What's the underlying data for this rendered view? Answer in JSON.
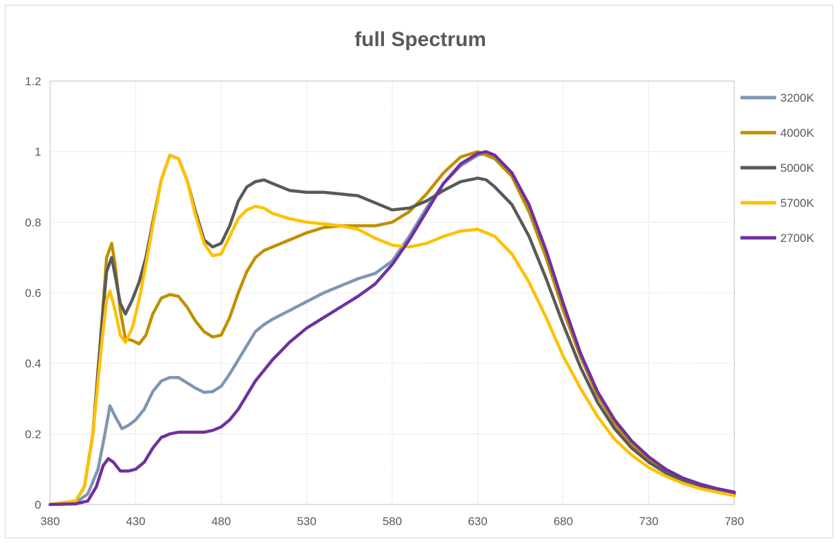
{
  "chart_data": {
    "type": "line",
    "title": "full Spectrum",
    "xlabel": "",
    "ylabel": "",
    "xlim": [
      380,
      780
    ],
    "ylim": [
      0,
      1.2
    ],
    "x_ticks": [
      "380",
      "430",
      "480",
      "530",
      "580",
      "630",
      "680",
      "730",
      "780"
    ],
    "y_ticks": [
      "0",
      "0.2",
      "0.4",
      "0.6",
      "0.8",
      "1",
      "1.2"
    ],
    "grid": true,
    "legend_position": "right",
    "series": [
      {
        "name": "3200K",
        "color": "#7f96b2",
        "points": [
          [
            380,
            0
          ],
          [
            395,
            0.005
          ],
          [
            402,
            0.03
          ],
          [
            408,
            0.1
          ],
          [
            412,
            0.2
          ],
          [
            415,
            0.28
          ],
          [
            418,
            0.25
          ],
          [
            422,
            0.215
          ],
          [
            426,
            0.225
          ],
          [
            430,
            0.24
          ],
          [
            435,
            0.27
          ],
          [
            440,
            0.32
          ],
          [
            445,
            0.35
          ],
          [
            450,
            0.36
          ],
          [
            455,
            0.36
          ],
          [
            460,
            0.345
          ],
          [
            465,
            0.33
          ],
          [
            470,
            0.318
          ],
          [
            475,
            0.32
          ],
          [
            480,
            0.335
          ],
          [
            485,
            0.37
          ],
          [
            490,
            0.41
          ],
          [
            495,
            0.45
          ],
          [
            500,
            0.49
          ],
          [
            505,
            0.51
          ],
          [
            510,
            0.525
          ],
          [
            520,
            0.55
          ],
          [
            530,
            0.575
          ],
          [
            540,
            0.6
          ],
          [
            550,
            0.62
          ],
          [
            560,
            0.64
          ],
          [
            570,
            0.655
          ],
          [
            580,
            0.69
          ],
          [
            590,
            0.76
          ],
          [
            600,
            0.84
          ],
          [
            610,
            0.91
          ],
          [
            620,
            0.96
          ],
          [
            630,
            0.99
          ],
          [
            635,
            0.995
          ],
          [
            640,
            0.98
          ],
          [
            650,
            0.93
          ],
          [
            660,
            0.83
          ],
          [
            670,
            0.7
          ],
          [
            680,
            0.55
          ],
          [
            690,
            0.42
          ],
          [
            700,
            0.31
          ],
          [
            710,
            0.23
          ],
          [
            720,
            0.17
          ],
          [
            730,
            0.13
          ],
          [
            740,
            0.095
          ],
          [
            750,
            0.072
          ],
          [
            760,
            0.055
          ],
          [
            770,
            0.045
          ],
          [
            780,
            0.035
          ]
        ]
      },
      {
        "name": "4000K",
        "color": "#bf9000",
        "points": [
          [
            380,
            0
          ],
          [
            395,
            0.01
          ],
          [
            400,
            0.05
          ],
          [
            405,
            0.2
          ],
          [
            410,
            0.5
          ],
          [
            413,
            0.7
          ],
          [
            416,
            0.74
          ],
          [
            418,
            0.68
          ],
          [
            421,
            0.55
          ],
          [
            424,
            0.47
          ],
          [
            428,
            0.465
          ],
          [
            432,
            0.455
          ],
          [
            436,
            0.48
          ],
          [
            440,
            0.54
          ],
          [
            445,
            0.585
          ],
          [
            450,
            0.595
          ],
          [
            455,
            0.59
          ],
          [
            460,
            0.56
          ],
          [
            465,
            0.52
          ],
          [
            470,
            0.49
          ],
          [
            475,
            0.475
          ],
          [
            480,
            0.48
          ],
          [
            485,
            0.53
          ],
          [
            490,
            0.6
          ],
          [
            495,
            0.66
          ],
          [
            500,
            0.7
          ],
          [
            505,
            0.72
          ],
          [
            510,
            0.73
          ],
          [
            520,
            0.75
          ],
          [
            530,
            0.77
          ],
          [
            540,
            0.785
          ],
          [
            550,
            0.79
          ],
          [
            560,
            0.79
          ],
          [
            570,
            0.79
          ],
          [
            580,
            0.8
          ],
          [
            590,
            0.83
          ],
          [
            600,
            0.88
          ],
          [
            610,
            0.94
          ],
          [
            620,
            0.985
          ],
          [
            630,
            1.0
          ],
          [
            640,
            0.98
          ],
          [
            650,
            0.93
          ],
          [
            660,
            0.83
          ],
          [
            670,
            0.7
          ],
          [
            680,
            0.55
          ],
          [
            690,
            0.42
          ],
          [
            700,
            0.31
          ],
          [
            710,
            0.23
          ],
          [
            720,
            0.17
          ],
          [
            730,
            0.125
          ],
          [
            740,
            0.093
          ],
          [
            750,
            0.07
          ],
          [
            760,
            0.053
          ],
          [
            770,
            0.04
          ],
          [
            780,
            0.03
          ]
        ]
      },
      {
        "name": "5000K",
        "color": "#595959",
        "points": [
          [
            380,
            0
          ],
          [
            395,
            0.01
          ],
          [
            400,
            0.05
          ],
          [
            405,
            0.2
          ],
          [
            410,
            0.5
          ],
          [
            413,
            0.66
          ],
          [
            416,
            0.7
          ],
          [
            418,
            0.65
          ],
          [
            421,
            0.57
          ],
          [
            424,
            0.54
          ],
          [
            428,
            0.58
          ],
          [
            432,
            0.63
          ],
          [
            436,
            0.7
          ],
          [
            440,
            0.8
          ],
          [
            445,
            0.92
          ],
          [
            450,
            0.99
          ],
          [
            455,
            0.98
          ],
          [
            460,
            0.92
          ],
          [
            465,
            0.83
          ],
          [
            470,
            0.75
          ],
          [
            475,
            0.73
          ],
          [
            480,
            0.74
          ],
          [
            485,
            0.79
          ],
          [
            490,
            0.86
          ],
          [
            495,
            0.9
          ],
          [
            500,
            0.915
          ],
          [
            505,
            0.92
          ],
          [
            510,
            0.91
          ],
          [
            520,
            0.89
          ],
          [
            530,
            0.885
          ],
          [
            540,
            0.885
          ],
          [
            550,
            0.88
          ],
          [
            560,
            0.875
          ],
          [
            570,
            0.855
          ],
          [
            580,
            0.835
          ],
          [
            590,
            0.84
          ],
          [
            600,
            0.86
          ],
          [
            610,
            0.89
          ],
          [
            620,
            0.915
          ],
          [
            630,
            0.925
          ],
          [
            635,
            0.92
          ],
          [
            640,
            0.9
          ],
          [
            650,
            0.85
          ],
          [
            660,
            0.76
          ],
          [
            670,
            0.64
          ],
          [
            680,
            0.51
          ],
          [
            690,
            0.39
          ],
          [
            700,
            0.29
          ],
          [
            710,
            0.215
          ],
          [
            720,
            0.16
          ],
          [
            730,
            0.12
          ],
          [
            740,
            0.09
          ],
          [
            750,
            0.067
          ],
          [
            760,
            0.05
          ],
          [
            770,
            0.04
          ],
          [
            780,
            0.03
          ]
        ]
      },
      {
        "name": "5700K",
        "color": "#ffc000",
        "points": [
          [
            380,
            0
          ],
          [
            395,
            0.01
          ],
          [
            400,
            0.05
          ],
          [
            405,
            0.2
          ],
          [
            410,
            0.45
          ],
          [
            413,
            0.58
          ],
          [
            415,
            0.605
          ],
          [
            418,
            0.55
          ],
          [
            421,
            0.48
          ],
          [
            424,
            0.46
          ],
          [
            428,
            0.5
          ],
          [
            432,
            0.58
          ],
          [
            436,
            0.68
          ],
          [
            440,
            0.79
          ],
          [
            445,
            0.92
          ],
          [
            450,
            0.99
          ],
          [
            455,
            0.98
          ],
          [
            460,
            0.92
          ],
          [
            465,
            0.82
          ],
          [
            470,
            0.74
          ],
          [
            475,
            0.705
          ],
          [
            480,
            0.71
          ],
          [
            485,
            0.76
          ],
          [
            490,
            0.81
          ],
          [
            495,
            0.835
          ],
          [
            500,
            0.845
          ],
          [
            505,
            0.84
          ],
          [
            510,
            0.825
          ],
          [
            520,
            0.81
          ],
          [
            530,
            0.8
          ],
          [
            540,
            0.795
          ],
          [
            550,
            0.79
          ],
          [
            560,
            0.78
          ],
          [
            570,
            0.755
          ],
          [
            580,
            0.735
          ],
          [
            590,
            0.73
          ],
          [
            600,
            0.74
          ],
          [
            610,
            0.76
          ],
          [
            620,
            0.775
          ],
          [
            630,
            0.78
          ],
          [
            640,
            0.76
          ],
          [
            650,
            0.71
          ],
          [
            660,
            0.63
          ],
          [
            670,
            0.53
          ],
          [
            680,
            0.42
          ],
          [
            690,
            0.33
          ],
          [
            700,
            0.25
          ],
          [
            710,
            0.185
          ],
          [
            720,
            0.14
          ],
          [
            730,
            0.105
          ],
          [
            740,
            0.08
          ],
          [
            750,
            0.06
          ],
          [
            760,
            0.045
          ],
          [
            770,
            0.035
          ],
          [
            780,
            0.025
          ]
        ]
      },
      {
        "name": "2700K",
        "color": "#7030a0",
        "points": [
          [
            380,
            0
          ],
          [
            395,
            0.002
          ],
          [
            402,
            0.01
          ],
          [
            407,
            0.05
          ],
          [
            411,
            0.11
          ],
          [
            414,
            0.13
          ],
          [
            417,
            0.12
          ],
          [
            421,
            0.095
          ],
          [
            426,
            0.095
          ],
          [
            430,
            0.1
          ],
          [
            435,
            0.12
          ],
          [
            440,
            0.16
          ],
          [
            445,
            0.19
          ],
          [
            450,
            0.2
          ],
          [
            455,
            0.205
          ],
          [
            460,
            0.205
          ],
          [
            470,
            0.205
          ],
          [
            475,
            0.21
          ],
          [
            480,
            0.22
          ],
          [
            485,
            0.24
          ],
          [
            490,
            0.27
          ],
          [
            495,
            0.31
          ],
          [
            500,
            0.35
          ],
          [
            510,
            0.41
          ],
          [
            520,
            0.46
          ],
          [
            530,
            0.5
          ],
          [
            540,
            0.53
          ],
          [
            550,
            0.56
          ],
          [
            560,
            0.59
          ],
          [
            570,
            0.625
          ],
          [
            580,
            0.68
          ],
          [
            590,
            0.75
          ],
          [
            600,
            0.83
          ],
          [
            610,
            0.91
          ],
          [
            620,
            0.965
          ],
          [
            630,
            0.995
          ],
          [
            635,
            1.0
          ],
          [
            640,
            0.99
          ],
          [
            650,
            0.94
          ],
          [
            660,
            0.85
          ],
          [
            670,
            0.72
          ],
          [
            680,
            0.57
          ],
          [
            690,
            0.43
          ],
          [
            700,
            0.32
          ],
          [
            710,
            0.24
          ],
          [
            720,
            0.18
          ],
          [
            730,
            0.135
          ],
          [
            740,
            0.1
          ],
          [
            750,
            0.075
          ],
          [
            760,
            0.058
          ],
          [
            770,
            0.045
          ],
          [
            780,
            0.035
          ]
        ]
      }
    ]
  }
}
